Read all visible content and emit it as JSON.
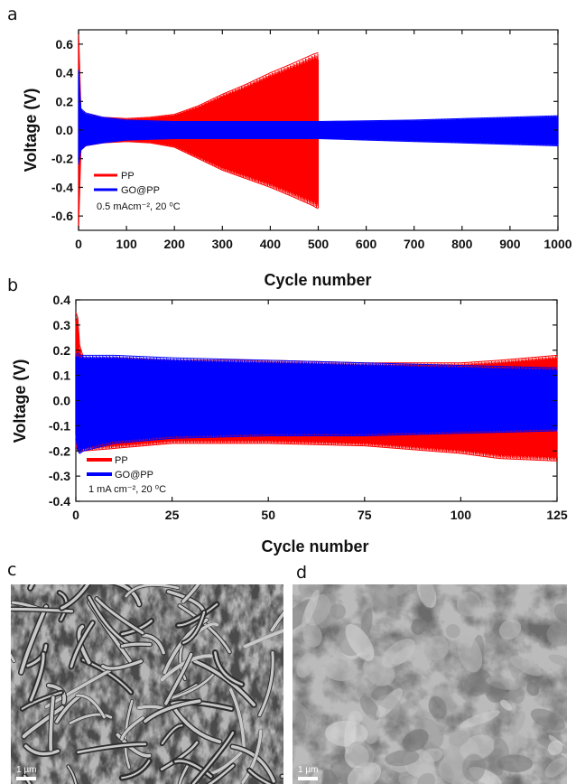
{
  "panels": {
    "a": "a",
    "b": "b",
    "c": "c",
    "d": "d"
  },
  "chart_data": [
    {
      "type": "line",
      "panel": "a",
      "xlabel": "Cycle number",
      "ylabel": "Voltage (V)",
      "xlim": [
        0,
        1000
      ],
      "ylim": [
        -0.7,
        0.7
      ],
      "x_ticks": [
        0,
        100,
        200,
        300,
        400,
        500,
        600,
        700,
        800,
        900,
        1000
      ],
      "y_ticks": [
        -0.6,
        -0.4,
        -0.2,
        0.0,
        0.2,
        0.4,
        0.6
      ],
      "x_tick_labels": [
        "0",
        "100",
        "200",
        "300",
        "400",
        "500",
        "600",
        "700",
        "800",
        "900",
        "1000"
      ],
      "y_tick_labels": [
        "-0.6",
        "-0.4",
        "-0.2",
        "0.0",
        "0.2",
        "0.4",
        "0.6"
      ],
      "annotation": "0.5 mAcm⁻², 20 ⁰C",
      "series": [
        {
          "name": "PP",
          "color": "#ff0000",
          "envelope_x": [
            0,
            5,
            15,
            50,
            100,
            150,
            200,
            250,
            300,
            350,
            400,
            450,
            490,
            500
          ],
          "envelope_upper": [
            0.7,
            0.14,
            0.11,
            0.09,
            0.08,
            0.09,
            0.11,
            0.17,
            0.25,
            0.32,
            0.4,
            0.47,
            0.53,
            0.54
          ],
          "envelope_lower": [
            -0.7,
            -0.14,
            -0.11,
            -0.09,
            -0.08,
            -0.09,
            -0.12,
            -0.2,
            -0.28,
            -0.34,
            -0.4,
            -0.47,
            -0.53,
            -0.55
          ]
        },
        {
          "name": "GO@PP",
          "color": "#0000ff",
          "envelope_x": [
            0,
            5,
            15,
            50,
            100,
            200,
            300,
            500,
            700,
            800,
            900,
            1000
          ],
          "envelope_upper": [
            0.42,
            0.15,
            0.12,
            0.09,
            0.07,
            0.06,
            0.06,
            0.06,
            0.07,
            0.08,
            0.09,
            0.1
          ],
          "envelope_lower": [
            -0.24,
            -0.14,
            -0.11,
            -0.09,
            -0.07,
            -0.06,
            -0.06,
            -0.06,
            -0.08,
            -0.09,
            -0.1,
            -0.11
          ]
        }
      ]
    },
    {
      "type": "line",
      "panel": "b",
      "xlabel": "Cycle number",
      "ylabel": "Voltage (V)",
      "xlim": [
        0,
        125
      ],
      "ylim": [
        -0.4,
        0.4
      ],
      "x_ticks": [
        0,
        25,
        50,
        75,
        100,
        125
      ],
      "y_ticks": [
        -0.4,
        -0.3,
        -0.2,
        -0.1,
        0.0,
        0.1,
        0.2,
        0.3,
        0.4
      ],
      "x_tick_labels": [
        "0",
        "25",
        "50",
        "75",
        "100",
        "125"
      ],
      "y_tick_labels": [
        "-0.4",
        "-0.3",
        "-0.2",
        "-0.1",
        "0.0",
        "0.1",
        "0.2",
        "0.3",
        "0.4"
      ],
      "annotation": "1 mA cm⁻², 20 ⁰C",
      "series": [
        {
          "name": "PP",
          "color": "#ff0000",
          "envelope_x": [
            0,
            0.5,
            1,
            2,
            10,
            25,
            50,
            75,
            100,
            110,
            125
          ],
          "envelope_upper": [
            0.35,
            0.33,
            0.22,
            0.17,
            0.17,
            0.16,
            0.16,
            0.15,
            0.15,
            0.16,
            0.18
          ],
          "envelope_lower": [
            -0.18,
            -0.2,
            -0.2,
            -0.2,
            -0.19,
            -0.17,
            -0.17,
            -0.18,
            -0.21,
            -0.23,
            -0.24
          ]
        },
        {
          "name": "GO@PP",
          "color": "#0000ff",
          "envelope_x": [
            0,
            0.5,
            1,
            2,
            10,
            25,
            50,
            75,
            100,
            125
          ],
          "envelope_upper": [
            0.18,
            0.19,
            0.18,
            0.18,
            0.18,
            0.17,
            0.16,
            0.15,
            0.14,
            0.13
          ],
          "envelope_lower": [
            -0.15,
            -0.2,
            -0.21,
            -0.2,
            -0.17,
            -0.15,
            -0.14,
            -0.14,
            -0.13,
            -0.12
          ]
        }
      ]
    }
  ],
  "images": {
    "c": {
      "scale_label": "1 µm"
    },
    "d": {
      "scale_label": "1 µm"
    }
  }
}
